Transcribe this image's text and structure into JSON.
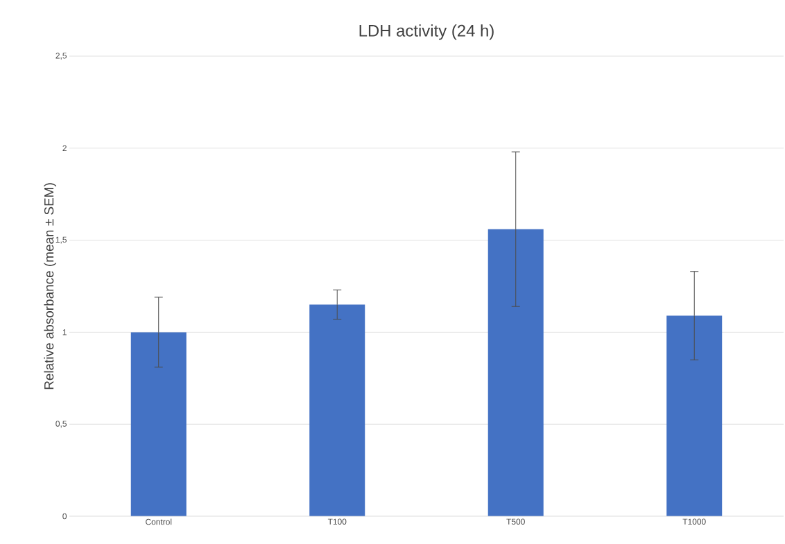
{
  "chart_data": {
    "type": "bar",
    "title": "LDH activity (24 h)",
    "ylabel": "Relative absorbance (mean ± SEM)",
    "categories": [
      "Control",
      "T100",
      "T500",
      "T1000"
    ],
    "values": [
      1.0,
      1.15,
      1.56,
      1.09
    ],
    "errors": [
      0.19,
      0.08,
      0.42,
      0.24
    ],
    "color": "#4472c4",
    "ylim": [
      0,
      2.5
    ],
    "yticks": [
      0,
      {
        "value": 0.5,
        "label": "0,5"
      },
      1,
      {
        "value": 1.5,
        "label": "1,5"
      },
      2,
      {
        "value": 2.5,
        "label": "2,5"
      }
    ],
    "grid": "y"
  }
}
